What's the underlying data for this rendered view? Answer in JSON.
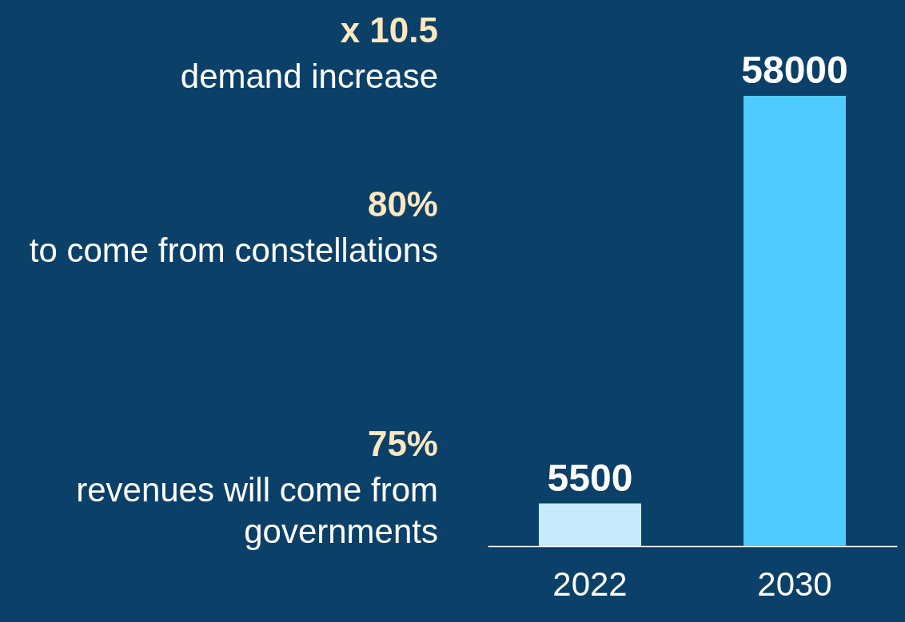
{
  "chart_data": {
    "type": "bar",
    "categories": [
      "2022",
      "2030"
    ],
    "values": [
      5500,
      58000
    ],
    "colors": [
      "#c6ecfc",
      "#4fcbff"
    ],
    "data_labels": true,
    "annotations": [
      "x 10.5",
      "demand increase",
      "80%",
      "to come from constellations",
      "75%",
      "revenues will come from governments"
    ]
  }
}
